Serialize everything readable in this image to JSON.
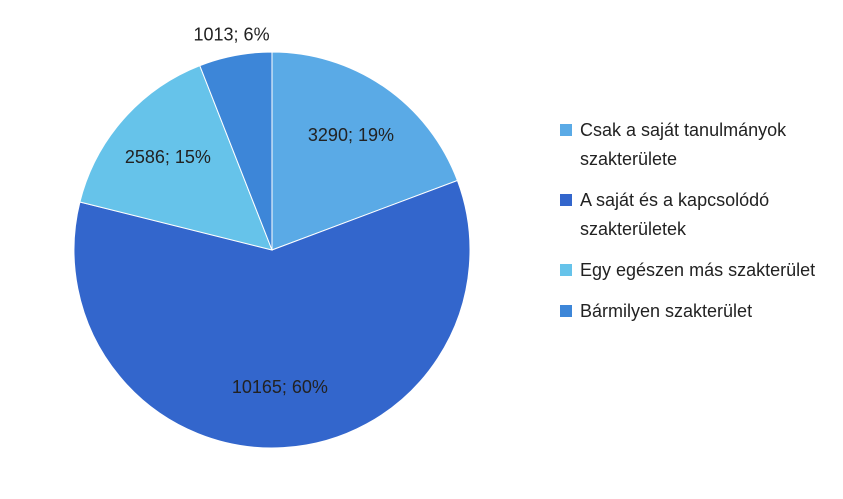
{
  "chart_data": {
    "type": "pie",
    "categories": [
      "Csak a saját tanulmányok szakterülete",
      "A saját és a kapcsolódó szakterületek",
      "Egy egészen más szakterület",
      "Bármilyen szakterület"
    ],
    "values": [
      3290,
      10165,
      2586,
      1013
    ],
    "value_labels": [
      "3290; 19%",
      "10165; 60%",
      "2586; 15%",
      "1013; 6%"
    ],
    "colors": [
      "#5aaae6",
      "#3366cc",
      "#66c3ea",
      "#3d86d8"
    ],
    "legend": "right"
  }
}
